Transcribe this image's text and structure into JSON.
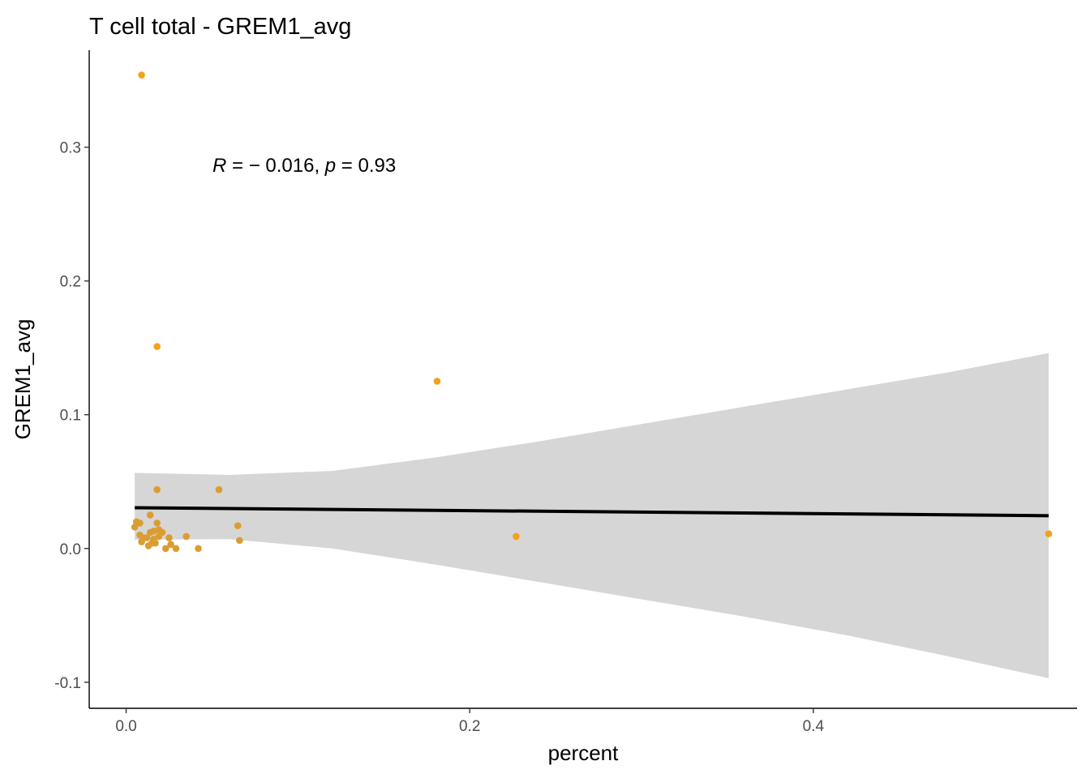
{
  "chart_data": {
    "type": "scatter",
    "title": "T cell total - GREM1_avg",
    "xlabel": "percent",
    "ylabel": "GREM1_avg",
    "xlim": [
      -0.0215,
      0.5535
    ],
    "ylim": [
      -0.1195,
      0.3725
    ],
    "x_ticks": [
      0.0,
      0.2,
      0.4
    ],
    "x_tick_labels": [
      "0.0",
      "0.2",
      "0.4"
    ],
    "y_ticks": [
      -0.1,
      0.0,
      0.1,
      0.2,
      0.3
    ],
    "y_tick_labels": [
      "-0.1",
      "0.0",
      "0.1",
      "0.2",
      "0.3"
    ],
    "grid": false,
    "legend": "none",
    "point_color": "#F5A11A",
    "point_color_overlap": "#DB9D32",
    "fit_line_color": "#000000",
    "ci_band_color": "#D6D6D6",
    "annotation": {
      "R_symbol": "R",
      "r_text": " = − 0.016, ",
      "p_symbol": "p",
      "p_text": " = 0.93"
    },
    "points": [
      {
        "x": 0.009,
        "y": 0.354
      },
      {
        "x": 0.018,
        "y": 0.151
      },
      {
        "x": 0.181,
        "y": 0.125
      },
      {
        "x": 0.018,
        "y": 0.044
      },
      {
        "x": 0.054,
        "y": 0.044
      },
      {
        "x": 0.006,
        "y": 0.02
      },
      {
        "x": 0.008,
        "y": 0.019
      },
      {
        "x": 0.014,
        "y": 0.025
      },
      {
        "x": 0.005,
        "y": 0.016
      },
      {
        "x": 0.018,
        "y": 0.019
      },
      {
        "x": 0.016,
        "y": 0.013
      },
      {
        "x": 0.019,
        "y": 0.014
      },
      {
        "x": 0.021,
        "y": 0.012
      },
      {
        "x": 0.014,
        "y": 0.012
      },
      {
        "x": 0.008,
        "y": 0.01
      },
      {
        "x": 0.01,
        "y": 0.008
      },
      {
        "x": 0.012,
        "y": 0.008
      },
      {
        "x": 0.009,
        "y": 0.005
      },
      {
        "x": 0.016,
        "y": 0.007
      },
      {
        "x": 0.019,
        "y": 0.009
      },
      {
        "x": 0.015,
        "y": 0.004
      },
      {
        "x": 0.013,
        "y": 0.002
      },
      {
        "x": 0.017,
        "y": 0.004
      },
      {
        "x": 0.025,
        "y": 0.008
      },
      {
        "x": 0.026,
        "y": 0.003
      },
      {
        "x": 0.023,
        "y": 0.0
      },
      {
        "x": 0.029,
        "y": 0.0
      },
      {
        "x": 0.035,
        "y": 0.009
      },
      {
        "x": 0.042,
        "y": 0.0
      },
      {
        "x": 0.065,
        "y": 0.017
      },
      {
        "x": 0.066,
        "y": 0.006
      },
      {
        "x": 0.227,
        "y": 0.009
      },
      {
        "x": 0.537,
        "y": 0.011
      }
    ],
    "fit_line": {
      "x": [
        0.005,
        0.537
      ],
      "y": [
        0.0305,
        0.0245
      ]
    },
    "ci_band": {
      "x": [
        0.005,
        0.06,
        0.12,
        0.18,
        0.24,
        0.3,
        0.36,
        0.42,
        0.48,
        0.537
      ],
      "upper": [
        0.0565,
        0.055,
        0.058,
        0.068,
        0.08,
        0.093,
        0.106,
        0.119,
        0.132,
        0.146
      ],
      "lower": [
        0.0065,
        0.007,
        0.0,
        -0.012,
        -0.025,
        -0.038,
        -0.051,
        -0.065,
        -0.081,
        -0.097
      ]
    }
  }
}
